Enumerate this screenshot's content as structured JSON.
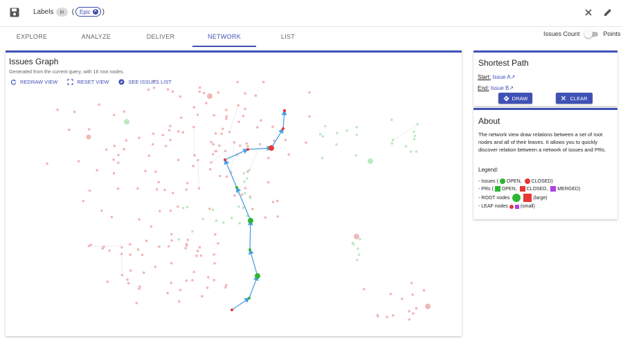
{
  "toolbar": {
    "query_label": "Labels",
    "operator": "in",
    "open_paren": "(",
    "close_paren": ")",
    "chip_label": "Epic"
  },
  "tabs": [
    {
      "label": "EXPLORE",
      "active": false
    },
    {
      "label": "ANALYZE",
      "active": false
    },
    {
      "label": "DELIVER",
      "active": false
    },
    {
      "label": "NETWORK",
      "active": true
    },
    {
      "label": "LIST",
      "active": false
    }
  ],
  "toggle": {
    "left_label": "Issues Count",
    "right_label": "Points"
  },
  "graph": {
    "title": "Issues Graph",
    "subtitle": "Generated from the current query, with 16 root nodes.",
    "actions": {
      "redraw": "REDRAW VIEW",
      "reset": "RESET VIEW",
      "see_list": "SEE ISSUES LIST"
    }
  },
  "shortest_path": {
    "title": "Shortest Path",
    "start_label": "Start:",
    "start_value": "Issue A",
    "end_label": "End:",
    "end_value": "Issue B",
    "draw_label": "DRAW",
    "clear_label": "CLEAR"
  },
  "about": {
    "title": "About",
    "text": "The network view draw relations between a set of root nodes and all of their leaves. It allows you to quickly discover relation between a network of issues and PRs.",
    "legend_title": "Legend:",
    "issues_prefix": "- Issues (",
    "issues_open": "OPEN,",
    "issues_closed": "CLOSED)",
    "prs_prefix": "- PRs (",
    "prs_open": "OPEN,",
    "prs_closed": "CLOSED,",
    "prs_merged": "MERGED)",
    "root_prefix": "- ROOT nodes",
    "root_suffix": "(large)",
    "leaf_prefix": "- LEAF nodes",
    "leaf_suffix": "(small)"
  },
  "colors": {
    "accent": "#3f51b5",
    "open": "#2db533",
    "closed": "#e53935",
    "merged": "#b040e0",
    "faded_closed": "#f2b6b8",
    "faded_open": "#bde8bf",
    "path": "#4a9fe0"
  }
}
